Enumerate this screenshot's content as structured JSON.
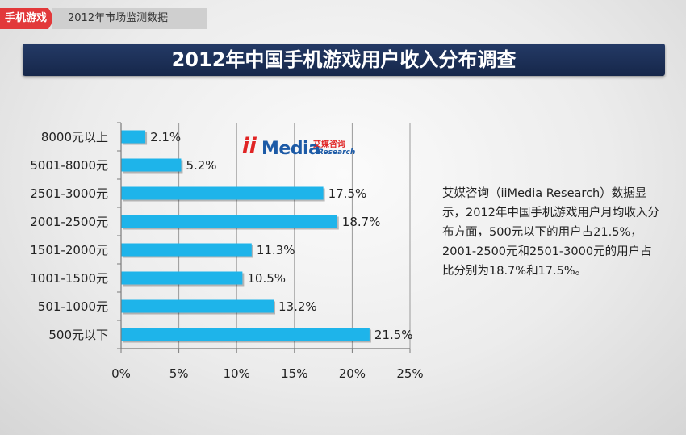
{
  "header": {
    "tab_label": "手机游戏",
    "sub_label": "2012年市场监测数据"
  },
  "title": "2012年中国手机游戏用户收入分布调查",
  "logo": {
    "ii": "ii",
    "media": "Media",
    "cn": "艾媒咨询",
    "en": "Research"
  },
  "description": "艾媒咨询（iiMedia Research）数据显示，2012年中国手机游戏用户月均收入分布方面，500元以下的用户占21.5%，2001-2500元和2501-3000元的用户占比分别为18.7%和17.5%。",
  "colors": {
    "bar": "#1eb4ea",
    "title_bg": "#1e325a",
    "tab": "#e2383a"
  },
  "chart_data": {
    "type": "bar",
    "orientation": "horizontal",
    "categories": [
      "8000元以上",
      "5001-8000元",
      "2501-3000元",
      "2001-2500元",
      "1501-2000元",
      "1001-1500元",
      "501-1000元",
      "500元以下"
    ],
    "values": [
      2.1,
      5.2,
      17.5,
      18.7,
      11.3,
      10.5,
      13.2,
      21.5
    ],
    "value_labels": [
      "2.1%",
      "5.2%",
      "17.5%",
      "18.7%",
      "11.3%",
      "10.5%",
      "13.2%",
      "21.5%"
    ],
    "xlim": [
      0,
      25
    ],
    "xticks": [
      0,
      5,
      10,
      15,
      20,
      25
    ],
    "xtick_labels": [
      "0%",
      "5%",
      "10%",
      "15%",
      "20%",
      "25%"
    ],
    "grid": "vertical"
  }
}
